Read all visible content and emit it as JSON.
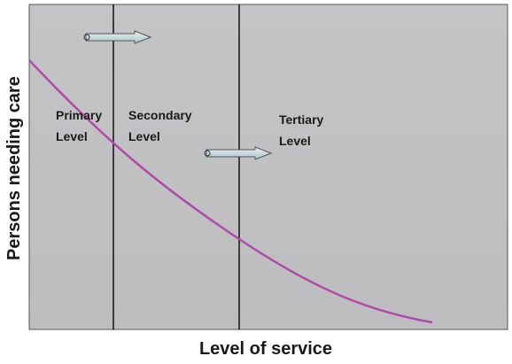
{
  "axes": {
    "x_label": "Level of service",
    "y_label": "Persons needing care"
  },
  "levels": [
    {
      "line1": "Primary",
      "line2": "Level"
    },
    {
      "line1": "Secondary",
      "line2": "Level"
    },
    {
      "line1": "Tertiary",
      "line2": "Level"
    }
  ]
}
